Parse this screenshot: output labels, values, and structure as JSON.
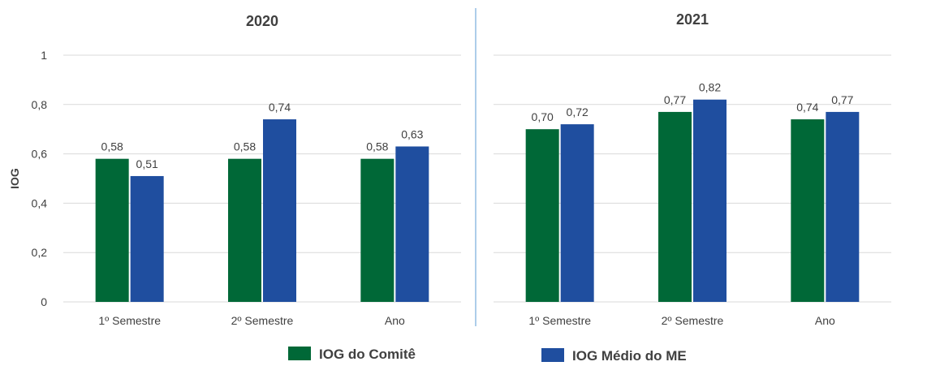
{
  "chart_data": [
    {
      "type": "bar",
      "title": "2020",
      "ylabel": "IOG",
      "ylim": [
        0,
        1
      ],
      "yticks": [
        "0",
        "0,2",
        "0,4",
        "0,6",
        "0,8",
        "1"
      ],
      "ytick_values": [
        0,
        0.2,
        0.4,
        0.6,
        0.8,
        1
      ],
      "grid": true,
      "categories": [
        "1º Semestre",
        "2º Semestre",
        "Ano"
      ],
      "series": [
        {
          "name": "IOG  do Comitê",
          "values": [
            0.58,
            0.58,
            0.58
          ],
          "labels": [
            "0,58",
            "0,58",
            "0,58"
          ]
        },
        {
          "name": "IOG  Médio do ME",
          "values": [
            0.51,
            0.74,
            0.63
          ],
          "labels": [
            "0,51",
            "0,74",
            "0,63"
          ]
        }
      ]
    },
    {
      "type": "bar",
      "title": "2021",
      "ylabel": "",
      "ylim": [
        0,
        1
      ],
      "grid": true,
      "categories": [
        "1º Semestre",
        "2º Semestre",
        "Ano"
      ],
      "series": [
        {
          "name": "IOG  do Comitê",
          "values": [
            0.7,
            0.77,
            0.74
          ],
          "labels": [
            "0,70",
            "0,77",
            "0,74"
          ]
        },
        {
          "name": "IOG  Médio do ME",
          "values": [
            0.72,
            0.82,
            0.77
          ],
          "labels": [
            "0,72",
            "0,82",
            "0,77"
          ]
        }
      ]
    }
  ],
  "legend": {
    "placement": "bottom",
    "items": [
      {
        "label": "IOG  do Comitê",
        "color": "#006837"
      },
      {
        "label": "IOG  Médio do ME",
        "color": "#1f4e9f"
      }
    ]
  },
  "colors": {
    "series1": "#006837",
    "series2": "#1f4e9f",
    "grid": "#d9d9d9",
    "divider": "#5b9bd5"
  }
}
